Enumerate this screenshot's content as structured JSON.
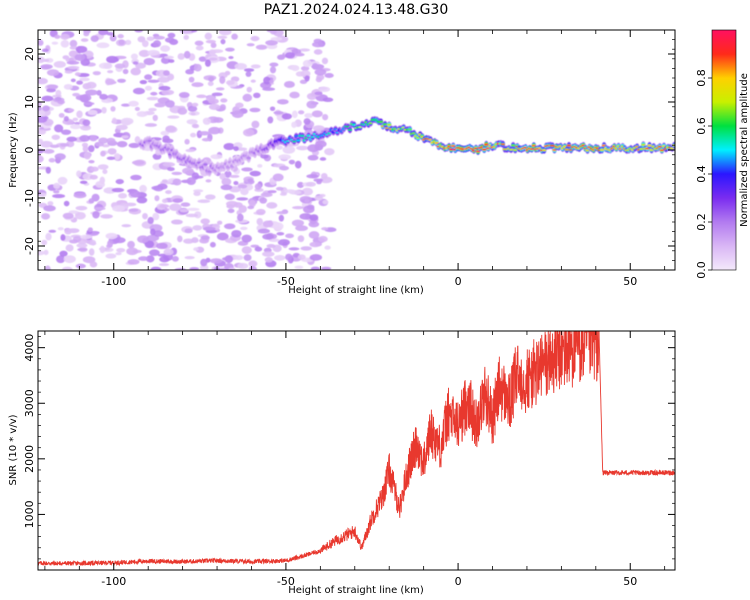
{
  "figure_title": "PAZ1.2024.024.13.48.G30",
  "colors": {
    "snr_line": "#e8382e",
    "axes": "#000000",
    "colormap": [
      "#f4e9fb",
      "#d9b6f5",
      "#b27bf0",
      "#7a2cf0",
      "#2b16ff",
      "#00f0ff",
      "#00e040",
      "#c8f000",
      "#ffd000",
      "#ff2a1a",
      "#ff1060"
    ]
  },
  "chart_data": [
    {
      "type": "heatmap",
      "title": "",
      "xlabel": "Height of straight line (km)",
      "ylabel": "Frequency (Hz)",
      "xlim": [
        -122,
        63
      ],
      "ylim": [
        -25,
        25
      ],
      "xticks": [
        -100,
        -50,
        0,
        50
      ],
      "yticks": [
        -20,
        -10,
        0,
        10,
        20
      ],
      "colorbar": {
        "label": "Normalized spectral amplitude",
        "range": [
          0,
          1
        ],
        "ticks": [
          0.0,
          0.2,
          0.4,
          0.6,
          0.8
        ]
      },
      "ridge": {
        "x": [
          -90,
          -80,
          -72,
          -66,
          -60,
          -54,
          -50,
          -45,
          -40,
          -35,
          -30,
          -25,
          -20,
          -15,
          -10,
          -5,
          0,
          5,
          10,
          15,
          20,
          30,
          40,
          50,
          62
        ],
        "frequency": [
          1.5,
          -1.5,
          -4,
          -3,
          -1,
          1,
          2,
          2.5,
          3,
          4,
          5,
          6,
          5,
          4,
          2.5,
          1,
          0,
          0,
          1,
          0.5,
          0.5,
          0.5,
          0.5,
          0.5,
          0.5
        ],
        "amplitude": [
          0.2,
          0.22,
          0.2,
          0.15,
          0.18,
          0.3,
          0.45,
          0.55,
          0.5,
          0.45,
          0.6,
          0.65,
          0.75,
          0.65,
          0.85,
          0.85,
          0.95,
          0.95,
          0.85,
          0.7,
          0.9,
          0.8,
          0.85,
          0.8,
          0.8
        ]
      }
    },
    {
      "type": "line",
      "title": "",
      "xlabel": "Height of straight line (km)",
      "ylabel": "SNR (10 * v/v)",
      "xlim": [
        -122,
        63
      ],
      "ylim": [
        0,
        4300
      ],
      "xticks": [
        -100,
        -50,
        0,
        50
      ],
      "yticks": [
        1000,
        2000,
        3000,
        4000
      ],
      "series": [
        {
          "x": [
            -122,
            -110,
            -100,
            -90,
            -80,
            -70,
            -60,
            -50,
            -45,
            -40,
            -35,
            -30,
            -28,
            -25,
            -22,
            -20,
            -17,
            -15,
            -12,
            -10,
            -8,
            -5,
            -3,
            0,
            3,
            5,
            8,
            10,
            12,
            15,
            17,
            20,
            25,
            30,
            35,
            40,
            41,
            42,
            50,
            63
          ],
          "values": [
            120,
            120,
            130,
            160,
            150,
            170,
            150,
            170,
            250,
            350,
            550,
            700,
            400,
            950,
            1300,
            1800,
            1100,
            1700,
            2300,
            1900,
            2500,
            2200,
            2800,
            2600,
            3100,
            2600,
            3200,
            2700,
            3300,
            3000,
            3500,
            3400,
            3700,
            3900,
            4050,
            4100,
            4100,
            1750,
            1750,
            1750
          ]
        }
      ],
      "grid": false
    }
  ]
}
